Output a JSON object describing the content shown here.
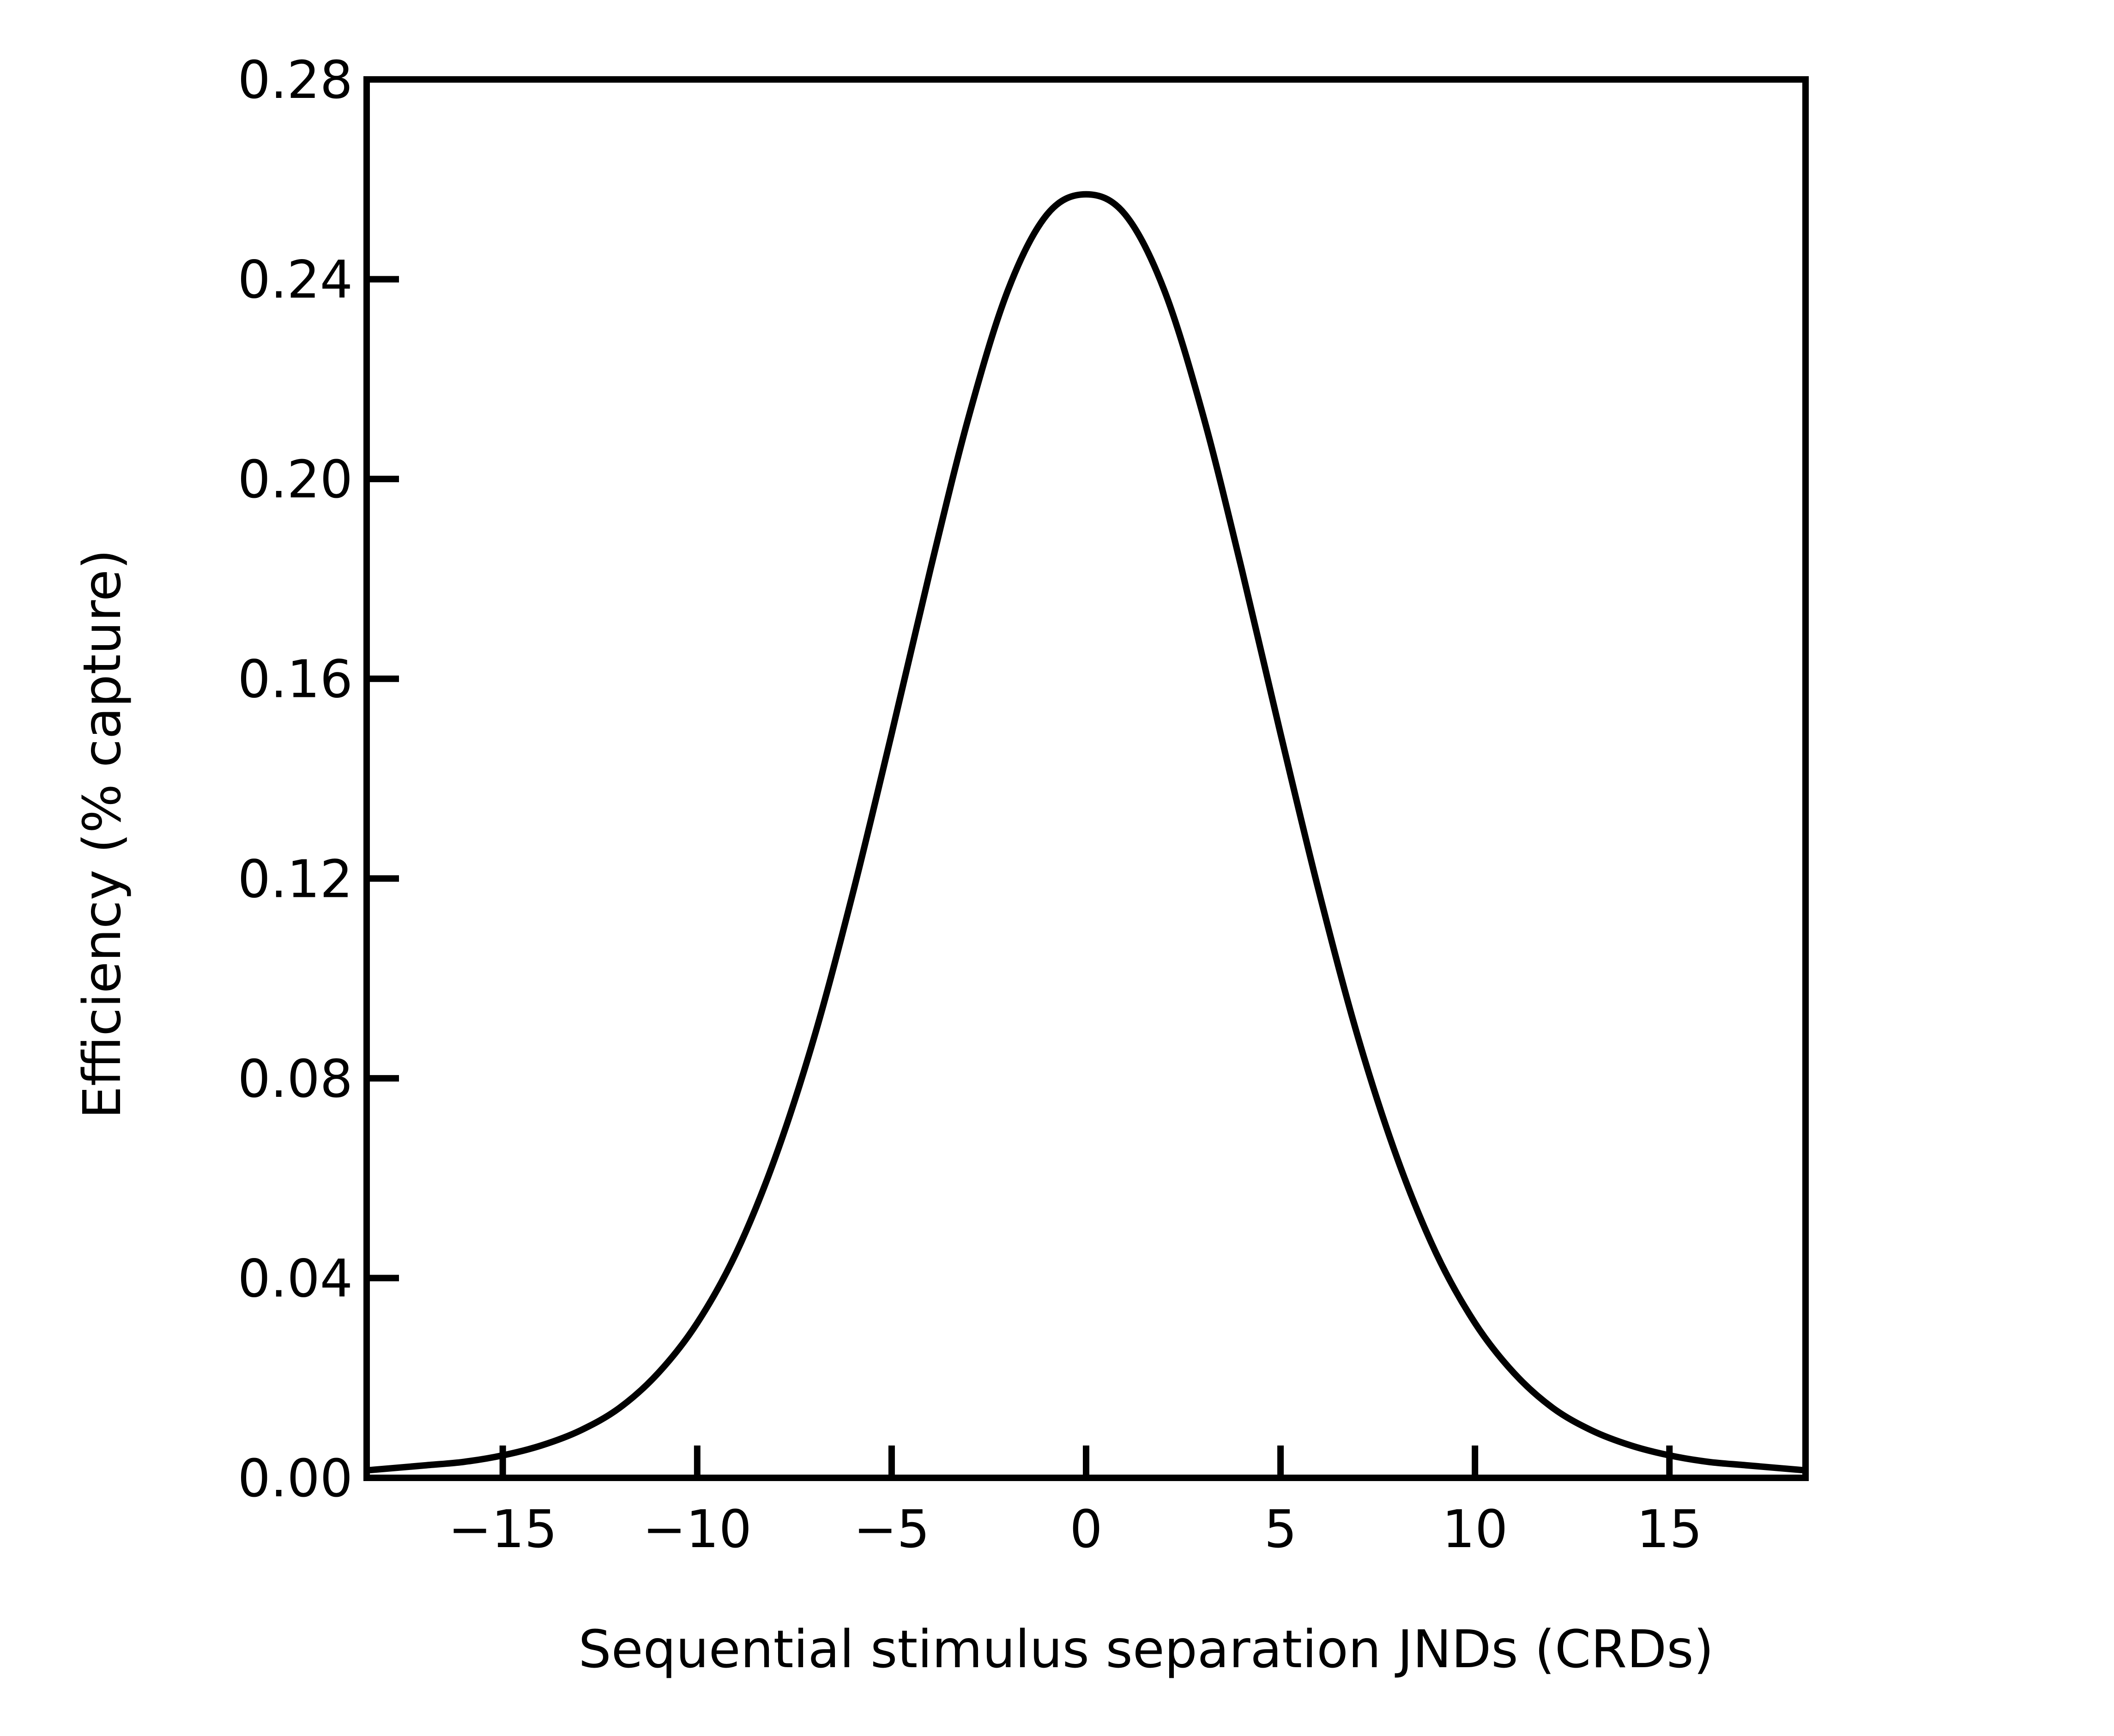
{
  "chart_data": {
    "type": "line",
    "title": "",
    "xlabel": "Sequential stimulus separation JNDs (CRDs)",
    "ylabel": "Efficiency (% capture)",
    "xlim": [
      -18.5,
      18.5
    ],
    "ylim": [
      0.0,
      0.28
    ],
    "x_ticks": [
      -15,
      -10,
      -5,
      0,
      5,
      10,
      15
    ],
    "x_tick_labels": [
      "−15",
      "−10",
      "−5",
      "0",
      "5",
      "10",
      "15"
    ],
    "y_ticks": [
      0.0,
      0.04,
      0.08,
      0.12,
      0.16,
      0.2,
      0.24,
      0.28
    ],
    "y_tick_labels": [
      "0.00",
      "0.04",
      "0.08",
      "0.12",
      "0.16",
      "0.20",
      "0.24",
      "0.28"
    ],
    "grid": false,
    "legend": "none",
    "line_color": "#000000",
    "series": [
      {
        "x": [
          -18.5,
          -17,
          -16,
          -15,
          -14,
          -13,
          -12,
          -11,
          -10,
          -9,
          -8,
          -7,
          -6,
          -5,
          -4,
          -3,
          -2,
          -1,
          0,
          1,
          2,
          3,
          4,
          5,
          6,
          7,
          8,
          9,
          10,
          11,
          12,
          13,
          14,
          15,
          16,
          17,
          18.5
        ],
        "values": [
          0.0015,
          0.0025,
          0.0032,
          0.0045,
          0.0065,
          0.0095,
          0.014,
          0.021,
          0.031,
          0.045,
          0.064,
          0.088,
          0.117,
          0.149,
          0.182,
          0.213,
          0.238,
          0.253,
          0.257,
          0.253,
          0.238,
          0.213,
          0.182,
          0.149,
          0.117,
          0.088,
          0.064,
          0.045,
          0.031,
          0.021,
          0.014,
          0.0095,
          0.0065,
          0.0045,
          0.0032,
          0.0025,
          0.0015
        ]
      }
    ]
  }
}
